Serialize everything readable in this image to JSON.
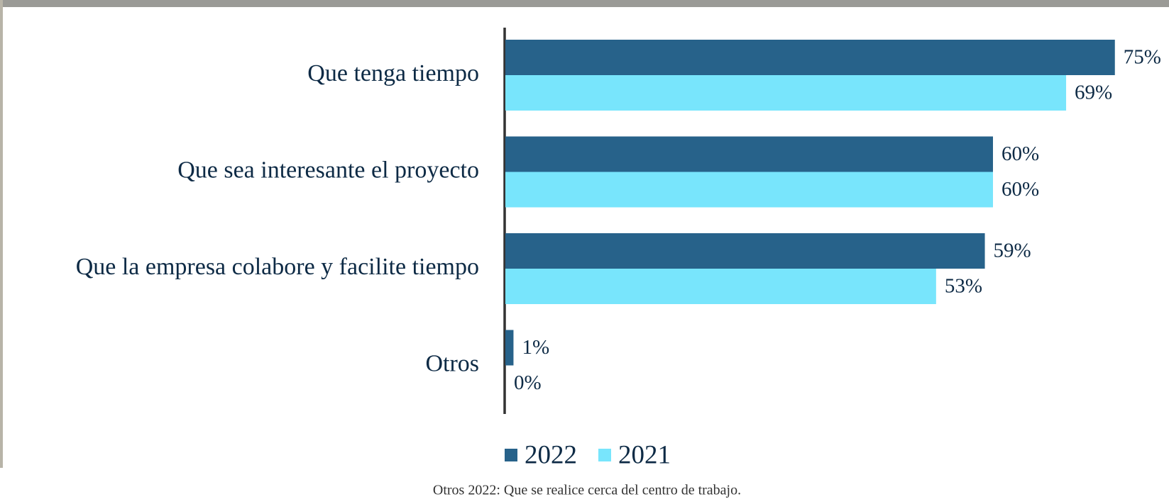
{
  "chart_data": {
    "type": "bar",
    "orientation": "horizontal",
    "categories": [
      "Que tenga tiempo",
      "Que sea interesante el proyecto",
      "Que la empresa colabore y facilite tiempo",
      "Otros"
    ],
    "series": [
      {
        "name": "2022",
        "color": "#27628a",
        "values": [
          75,
          60,
          59,
          1
        ],
        "value_labels": [
          "75%",
          "60%",
          "59%",
          "1%"
        ]
      },
      {
        "name": "2021",
        "color": "#78e5fc",
        "values": [
          69,
          60,
          53,
          0
        ],
        "value_labels": [
          "69%",
          "60%",
          "53%",
          "0%"
        ]
      }
    ],
    "footnote": "Otros 2022: Que se realice cerca del centro de trabajo."
  }
}
